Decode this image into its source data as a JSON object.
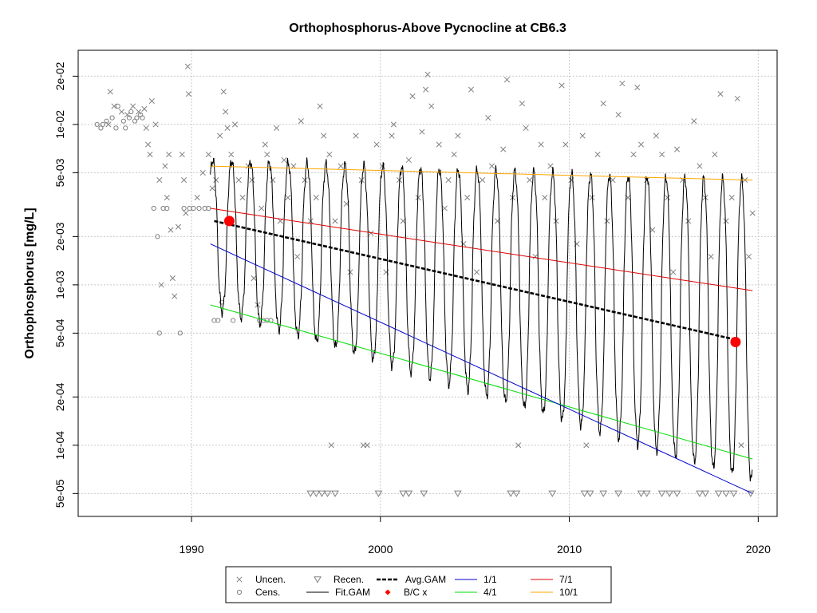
{
  "chart_data": {
    "type": "scatter",
    "title": "Orthophosphorus-Above Pycnocline at CB6.3",
    "xlabel": "",
    "ylabel": "Orthophosphorus [mg/L]",
    "y_scale": "log",
    "xlim": [
      1984,
      2021
    ],
    "ylim": [
      3.6e-05,
      0.029
    ],
    "x_ticks": [
      1990,
      2000,
      2010,
      2020
    ],
    "x_tick_labels": [
      "1990",
      "2000",
      "2010",
      "2020"
    ],
    "y_ticks": [
      5e-05,
      0.0001,
      0.0002,
      0.0005,
      0.001,
      0.002,
      0.005,
      0.01,
      0.02
    ],
    "y_tick_labels": [
      "5e-05",
      "1e-04",
      "2e-04",
      "5e-04",
      "1e-03",
      "2e-03",
      "5e-03",
      "1e-02",
      "2e-02"
    ],
    "grid": true,
    "legend_position": "bottom",
    "legend": [
      {
        "label": "Uncen.",
        "symbol": "x-mark",
        "color": "#808080"
      },
      {
        "label": "Recen.",
        "symbol": "triangle-down",
        "color": "#808080"
      },
      {
        "label": "Avg.GAM",
        "symbol": "dashed-line",
        "color": "#000000"
      },
      {
        "label": "1/1",
        "symbol": "line",
        "color": "#0000CD"
      },
      {
        "label": "7/1",
        "symbol": "line",
        "color": "#E00000"
      },
      {
        "label": "Cens.",
        "symbol": "circle-open",
        "color": "#808080"
      },
      {
        "label": "Fit.GAM",
        "symbol": "line",
        "color": "#000000"
      },
      {
        "label": "B/C x",
        "symbol": "diamond-filled",
        "color": "#FF0000"
      },
      {
        "label": "4/1",
        "symbol": "line",
        "color": "#00DD00"
      },
      {
        "label": "10/1",
        "symbol": "line",
        "color": "#FFA500"
      }
    ],
    "colors": {
      "points": "#808080",
      "fit_gam": "#000000",
      "avg_gam": "#000000",
      "line_1_1": "#0000CD",
      "line_4_1": "#00DD00",
      "line_7_1": "#E00000",
      "line_10_1": "#FFA500",
      "bc_marker": "#FF0000",
      "grid": "#C8C8C8"
    },
    "series": [
      {
        "name": "1/1",
        "x": [
          1991.0,
          2019.7
        ],
        "values": [
          0.0018,
          5e-05
        ]
      },
      {
        "name": "4/1",
        "x": [
          1991.0,
          2019.7
        ],
        "values": [
          0.00075,
          8.2e-05
        ]
      },
      {
        "name": "7/1",
        "x": [
          1991.0,
          2019.7
        ],
        "values": [
          0.003,
          0.00092
        ]
      },
      {
        "name": "10/1",
        "x": [
          1991.0,
          2019.7
        ],
        "values": [
          0.0055,
          0.0045
        ]
      },
      {
        "name": "Avg.GAM",
        "x": [
          1991.2,
          2019.0
        ],
        "values": [
          0.0025,
          0.00045
        ]
      },
      {
        "name": "B/C x",
        "x": [
          1992.0,
          2018.8
        ],
        "values": [
          0.0025,
          0.00044
        ]
      },
      {
        "name": "Fit.GAM",
        "x": [
          1991.0,
          2019.7
        ],
        "values": [
          0.0025,
          0.004
        ],
        "seasonal_max": [
          0.006,
          0.0045
        ],
        "seasonal_min": [
          0.00072,
          6e-05
        ]
      }
    ],
    "uncensored_points": [
      [
        1985.6,
        0.01
      ],
      [
        1985.7,
        0.016
      ],
      [
        1985.9,
        0.013
      ],
      [
        1986.3,
        0.012
      ],
      [
        1986.6,
        0.0115
      ],
      [
        1986.9,
        0.013
      ],
      [
        1987.2,
        0.012
      ],
      [
        1987.5,
        0.0125
      ],
      [
        1987.6,
        0.0095
      ],
      [
        1987.7,
        0.0075
      ],
      [
        1987.8,
        0.0065
      ],
      [
        1987.9,
        0.014
      ],
      [
        1988.1,
        0.01
      ],
      [
        1988.3,
        0.0045
      ],
      [
        1988.4,
        0.001
      ],
      [
        1988.6,
        0.0055
      ],
      [
        1988.7,
        0.0035
      ],
      [
        1988.8,
        0.0065
      ],
      [
        1988.9,
        0.0022
      ],
      [
        1989.0,
        0.0011
      ],
      [
        1989.1,
        0.00085
      ],
      [
        1989.3,
        0.0023
      ],
      [
        1989.5,
        0.0065
      ],
      [
        1989.6,
        0.0045
      ],
      [
        1989.7,
        0.0028
      ],
      [
        1989.8,
        0.023
      ],
      [
        1989.85,
        0.0155
      ],
      [
        1990.3,
        0.0035
      ],
      [
        1990.6,
        0.005
      ],
      [
        1990.9,
        0.0065
      ],
      [
        1991.1,
        0.004
      ],
      [
        1991.3,
        0.0045
      ],
      [
        1991.5,
        0.0085
      ],
      [
        1991.7,
        0.016
      ],
      [
        1991.8,
        0.012
      ],
      [
        1991.9,
        0.0095
      ],
      [
        1992.1,
        0.0065
      ],
      [
        1992.3,
        0.01
      ],
      [
        1992.5,
        0.0045
      ],
      [
        1992.7,
        0.0035
      ],
      [
        1993.0,
        0.0055
      ],
      [
        1993.2,
        0.0045
      ],
      [
        1993.3,
        0.0011
      ],
      [
        1993.5,
        0.00075
      ],
      [
        1993.7,
        0.003
      ],
      [
        1993.9,
        0.0075
      ],
      [
        1994.0,
        0.0065
      ],
      [
        1994.3,
        0.0045
      ],
      [
        1994.5,
        0.0095
      ],
      [
        1994.7,
        0.0025
      ],
      [
        1994.9,
        0.006
      ],
      [
        1995.1,
        0.0035
      ],
      [
        1995.4,
        0.0055
      ],
      [
        1995.6,
        0.0015
      ],
      [
        1995.8,
        0.0105
      ],
      [
        1996.0,
        0.0045
      ],
      [
        1996.3,
        0.0025
      ],
      [
        1996.6,
        0.0035
      ],
      [
        1996.8,
        0.013
      ],
      [
        1997.0,
        0.0085
      ],
      [
        1997.3,
        0.0065
      ],
      [
        1997.4,
        0.0001
      ],
      [
        1997.6,
        0.0025
      ],
      [
        1997.9,
        0.0055
      ],
      [
        1998.2,
        0.0032
      ],
      [
        1998.4,
        0.0012
      ],
      [
        1998.7,
        0.0085
      ],
      [
        1999.0,
        0.0045
      ],
      [
        1999.1,
        0.0001
      ],
      [
        1999.3,
        0.0001
      ],
      [
        1999.5,
        0.0021
      ],
      [
        1999.8,
        0.0075
      ],
      [
        2000.1,
        0.0055
      ],
      [
        2000.3,
        0.0012
      ],
      [
        2000.6,
        0.0085
      ],
      [
        2000.7,
        0.01
      ],
      [
        2001.0,
        0.0045
      ],
      [
        2001.2,
        0.0025
      ],
      [
        2001.5,
        0.006
      ],
      [
        2001.7,
        0.015
      ],
      [
        2002.0,
        0.0035
      ],
      [
        2002.2,
        0.009
      ],
      [
        2002.4,
        0.0165
      ],
      [
        2002.5,
        0.0205
      ],
      [
        2002.7,
        0.013
      ],
      [
        2003.1,
        0.0075
      ],
      [
        2003.4,
        0.003
      ],
      [
        2003.6,
        0.0045
      ],
      [
        2003.9,
        0.0065
      ],
      [
        2004.1,
        0.0085
      ],
      [
        2004.4,
        0.0018
      ],
      [
        2004.6,
        0.0035
      ],
      [
        2004.8,
        0.0165
      ],
      [
        2005.1,
        0.0012
      ],
      [
        2005.4,
        0.0045
      ],
      [
        2005.7,
        0.011
      ],
      [
        2005.9,
        0.0055
      ],
      [
        2006.2,
        0.0025
      ],
      [
        2006.5,
        0.007
      ],
      [
        2006.7,
        0.019
      ],
      [
        2007.0,
        0.0035
      ],
      [
        2007.3,
        0.0001
      ],
      [
        2007.5,
        0.0135
      ],
      [
        2007.7,
        0.0095
      ],
      [
        2007.9,
        0.0045
      ],
      [
        2008.2,
        0.0015
      ],
      [
        2008.5,
        0.0075
      ],
      [
        2008.7,
        0.0035
      ],
      [
        2009.0,
        0.0055
      ],
      [
        2009.3,
        0.0025
      ],
      [
        2009.6,
        0.0175
      ],
      [
        2009.8,
        0.0075
      ],
      [
        2010.1,
        0.0045
      ],
      [
        2010.4,
        0.0018
      ],
      [
        2010.7,
        0.0085
      ],
      [
        2010.9,
        0.0001
      ],
      [
        2011.2,
        0.0035
      ],
      [
        2011.5,
        0.0065
      ],
      [
        2011.8,
        0.0135
      ],
      [
        2012.0,
        0.0025
      ],
      [
        2012.3,
        0.0045
      ],
      [
        2012.6,
        0.0115
      ],
      [
        2012.8,
        0.018
      ],
      [
        2013.1,
        0.0035
      ],
      [
        2013.4,
        0.0065
      ],
      [
        2013.6,
        0.017
      ],
      [
        2013.8,
        0.0075
      ],
      [
        2014.1,
        0.0045
      ],
      [
        2014.4,
        0.0022
      ],
      [
        2014.6,
        0.0085
      ],
      [
        2014.9,
        0.0065
      ],
      [
        2015.2,
        0.0035
      ],
      [
        2015.5,
        0.0012
      ],
      [
        2015.7,
        0.007
      ],
      [
        2016.0,
        0.0045
      ],
      [
        2016.3,
        0.0025
      ],
      [
        2016.6,
        0.0105
      ],
      [
        2016.9,
        0.0055
      ],
      [
        2017.2,
        0.0035
      ],
      [
        2017.5,
        0.0015
      ],
      [
        2017.7,
        0.0065
      ],
      [
        2018.0,
        0.0155
      ],
      [
        2018.3,
        0.0025
      ],
      [
        2018.6,
        0.0035
      ],
      [
        2018.9,
        0.0145
      ],
      [
        2019.1,
        0.0001
      ],
      [
        2019.3,
        0.0045
      ],
      [
        2019.5,
        0.0015
      ],
      [
        2019.7,
        0.0028
      ]
    ],
    "censored_points": [
      [
        1985.0,
        0.01
      ],
      [
        1985.2,
        0.0095
      ],
      [
        1985.3,
        0.01
      ],
      [
        1985.5,
        0.0105
      ],
      [
        1985.8,
        0.011
      ],
      [
        1986.0,
        0.0095
      ],
      [
        1986.1,
        0.013
      ],
      [
        1986.4,
        0.0105
      ],
      [
        1986.5,
        0.0095
      ],
      [
        1986.7,
        0.011
      ],
      [
        1986.8,
        0.012
      ],
      [
        1987.0,
        0.0105
      ],
      [
        1987.1,
        0.011
      ],
      [
        1987.3,
        0.0115
      ],
      [
        1987.4,
        0.011
      ],
      [
        1988.0,
        0.003
      ],
      [
        1988.2,
        0.002
      ],
      [
        1988.3,
        0.0005
      ],
      [
        1988.5,
        0.003
      ],
      [
        1988.7,
        0.003
      ],
      [
        1989.4,
        0.0005
      ],
      [
        1989.6,
        0.003
      ],
      [
        1989.9,
        0.003
      ],
      [
        1990.1,
        0.003
      ],
      [
        1990.4,
        0.003
      ],
      [
        1990.7,
        0.003
      ],
      [
        1990.9,
        0.003
      ],
      [
        1991.2,
        0.0006
      ],
      [
        1991.4,
        0.0006
      ],
      [
        1991.6,
        0.00078
      ],
      [
        1992.2,
        0.0006
      ],
      [
        1993.6,
        0.0006
      ],
      [
        1993.8,
        0.0006
      ],
      [
        1994.0,
        0.0006
      ],
      [
        1994.2,
        0.0006
      ]
    ],
    "recensored_points": [
      [
        1996.3,
        5e-05
      ],
      [
        1996.6,
        5e-05
      ],
      [
        1996.9,
        5e-05
      ],
      [
        1997.2,
        5e-05
      ],
      [
        1997.6,
        5e-05
      ],
      [
        1999.9,
        5e-05
      ],
      [
        2001.2,
        5e-05
      ],
      [
        2001.5,
        5e-05
      ],
      [
        2002.3,
        5e-05
      ],
      [
        2004.1,
        5e-05
      ],
      [
        2006.9,
        5e-05
      ],
      [
        2007.2,
        5e-05
      ],
      [
        2009.1,
        5e-05
      ],
      [
        2010.8,
        5e-05
      ],
      [
        2011.1,
        5e-05
      ],
      [
        2011.8,
        5e-05
      ],
      [
        2012.6,
        5e-05
      ],
      [
        2013.8,
        5e-05
      ],
      [
        2014.1,
        5e-05
      ],
      [
        2014.9,
        5e-05
      ],
      [
        2015.3,
        5e-05
      ],
      [
        2015.7,
        5e-05
      ],
      [
        2016.9,
        5e-05
      ],
      [
        2017.2,
        5e-05
      ],
      [
        2017.9,
        5e-05
      ],
      [
        2018.3,
        5e-05
      ],
      [
        2018.7,
        5e-05
      ],
      [
        2019.6,
        5e-05
      ]
    ]
  }
}
